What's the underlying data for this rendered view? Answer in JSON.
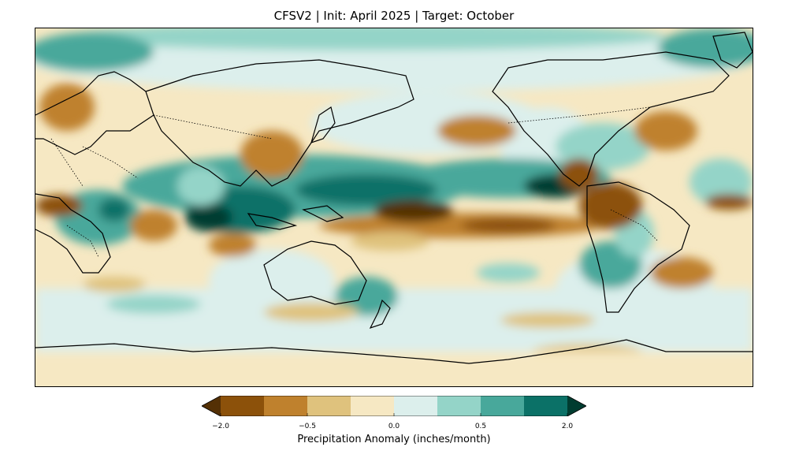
{
  "title": "CFSV2 | Init: April 2025 | Target: October",
  "colorbar": {
    "label": "Precipitation Anomaly (inches/month)",
    "tick_labels": [
      "−2.0",
      "−0.5",
      "0.0",
      "0.5",
      "2.0"
    ],
    "tick_values": [
      -2.0,
      -0.5,
      0.0,
      0.5,
      2.0
    ],
    "boundaries": [
      -2.5,
      -2.0,
      -1.0,
      -0.5,
      -0.25,
      0.0,
      0.25,
      0.5,
      1.0,
      2.0,
      2.5
    ],
    "extend": "both",
    "colors": [
      "#543005",
      "#8c510a",
      "#bf812d",
      "#dfc27d",
      "#f6e8c3",
      "#dcefec",
      "#94d4c8",
      "#48a89b",
      "#0b7167",
      "#003c30"
    ]
  },
  "map": {
    "projection": "equirectangular, centered on 180°",
    "features": [
      "coastlines",
      "country-borders"
    ]
  }
}
